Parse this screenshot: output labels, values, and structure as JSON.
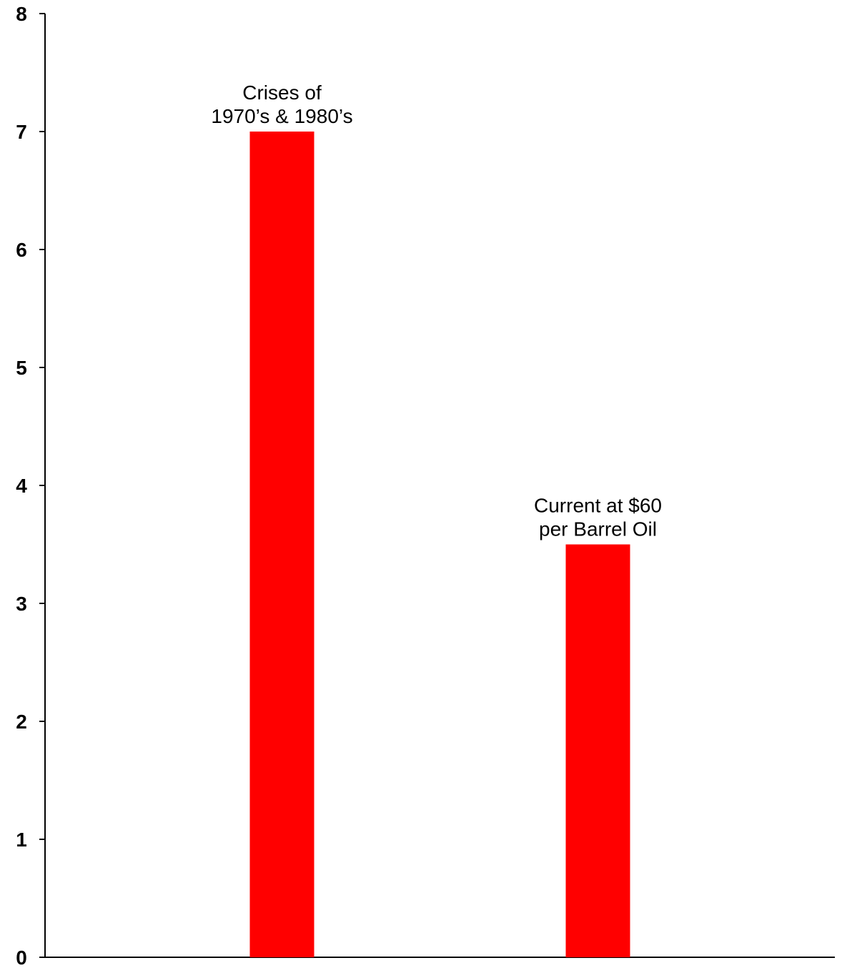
{
  "chart_data": {
    "type": "bar",
    "categories": [
      "Crises of 1970’s & 1980’s",
      "Current at $60 per Barrel Oil"
    ],
    "values": [
      7,
      3.5
    ],
    "data_labels": [
      [
        "Crises of",
        "1970’s & 1980’s"
      ],
      [
        "Current at $60",
        "per Barrel Oil"
      ]
    ],
    "title": "",
    "xlabel": "",
    "ylabel": "",
    "ylim": [
      0,
      8
    ],
    "yticks": [
      "0",
      "1",
      "2",
      "3",
      "4",
      "5",
      "6",
      "7",
      "8"
    ],
    "grid": false,
    "bar_color": "#ff0000"
  }
}
